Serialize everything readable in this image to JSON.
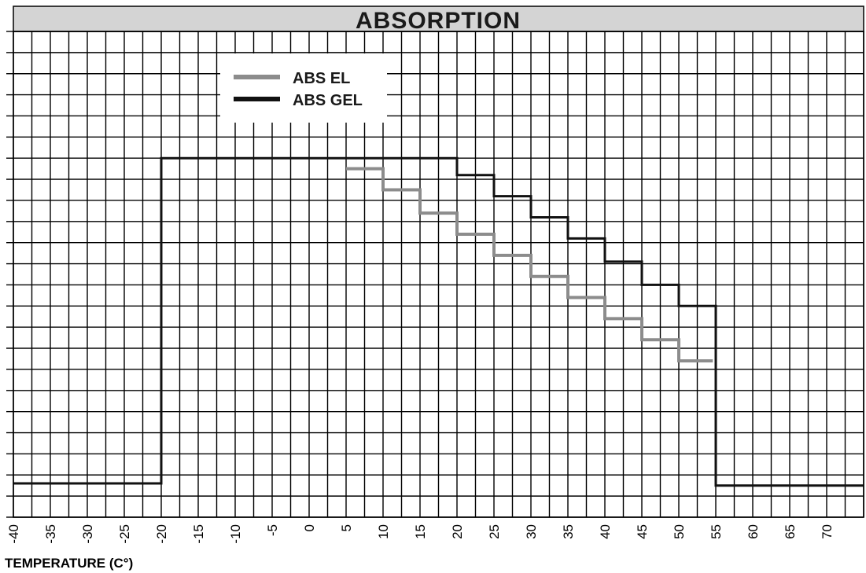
{
  "chart_data": {
    "type": "line",
    "step": true,
    "title": "ABSORPTION",
    "xlabel": "TEMPERATURE (C°)",
    "ylabel": "",
    "xlim": [
      -40,
      75
    ],
    "ylim": [
      0,
      23
    ],
    "x_ticks": [
      -40,
      -35,
      -30,
      -25,
      -20,
      -15,
      -10,
      -5,
      0,
      5,
      10,
      15,
      20,
      25,
      30,
      35,
      40,
      45,
      50,
      55,
      60,
      65,
      70
    ],
    "y_tick_labels": false,
    "grid": true,
    "legend_position": "top-left",
    "series": [
      {
        "name": "ABS EL",
        "color": "#8c8c8c",
        "points": [
          [
            5,
            16.5
          ],
          [
            10,
            16.5
          ],
          [
            10,
            15.5
          ],
          [
            15,
            15.5
          ],
          [
            15,
            14.4
          ],
          [
            20,
            14.4
          ],
          [
            20,
            13.4
          ],
          [
            25,
            13.4
          ],
          [
            25,
            12.4
          ],
          [
            30,
            12.4
          ],
          [
            30,
            11.4
          ],
          [
            35,
            11.4
          ],
          [
            35,
            10.4
          ],
          [
            40,
            10.4
          ],
          [
            40,
            9.4
          ],
          [
            45,
            9.4
          ],
          [
            45,
            8.4
          ],
          [
            50,
            8.4
          ],
          [
            50,
            7.4
          ],
          [
            54.6,
            7.4
          ]
        ]
      },
      {
        "name": "ABS GEL",
        "color": "#111111",
        "points": [
          [
            -40,
            1.6
          ],
          [
            -20,
            1.6
          ],
          [
            -20,
            17.0
          ],
          [
            20,
            17.0
          ],
          [
            20,
            16.2
          ],
          [
            25,
            16.2
          ],
          [
            25,
            15.2
          ],
          [
            30,
            15.2
          ],
          [
            30,
            14.2
          ],
          [
            35,
            14.2
          ],
          [
            35,
            13.2
          ],
          [
            40,
            13.2
          ],
          [
            40,
            12.1
          ],
          [
            45,
            12.1
          ],
          [
            45,
            11.0
          ],
          [
            50,
            11.0
          ],
          [
            50,
            10.0
          ],
          [
            55,
            10.0
          ],
          [
            55,
            1.5
          ],
          [
            75,
            1.5
          ]
        ]
      }
    ]
  }
}
